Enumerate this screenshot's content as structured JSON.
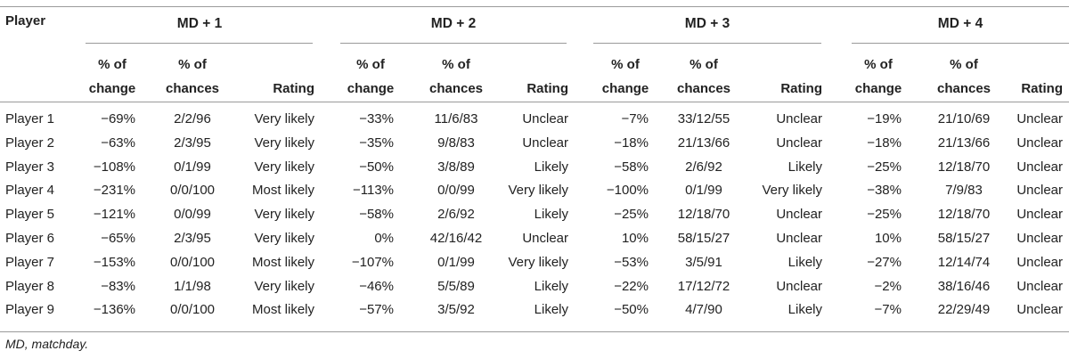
{
  "header": {
    "player": "Player",
    "groups": [
      "MD + 1",
      "MD + 2",
      "MD + 3",
      "MD + 4"
    ],
    "col_change_l1": "% of",
    "col_change_l2": "change",
    "col_chances_l1": "% of",
    "col_chances_l2": "chances",
    "col_rating": "Rating"
  },
  "rows": [
    {
      "player": "Player 1",
      "md": [
        [
          "−69%",
          "2/2/96",
          "Very likely"
        ],
        [
          "−33%",
          "11/6/83",
          "Unclear"
        ],
        [
          "−7%",
          "33/12/55",
          "Unclear"
        ],
        [
          "−19%",
          "21/10/69",
          "Unclear"
        ]
      ]
    },
    {
      "player": "Player 2",
      "md": [
        [
          "−63%",
          "2/3/95",
          "Very likely"
        ],
        [
          "−35%",
          "9/8/83",
          "Unclear"
        ],
        [
          "−18%",
          "21/13/66",
          "Unclear"
        ],
        [
          "−18%",
          "21/13/66",
          "Unclear"
        ]
      ]
    },
    {
      "player": "Player 3",
      "md": [
        [
          "−108%",
          "0/1/99",
          "Very likely"
        ],
        [
          "−50%",
          "3/8/89",
          "Likely"
        ],
        [
          "−58%",
          "2/6/92",
          "Likely"
        ],
        [
          "−25%",
          "12/18/70",
          "Unclear"
        ]
      ]
    },
    {
      "player": "Player 4",
      "md": [
        [
          "−231%",
          "0/0/100",
          "Most likely"
        ],
        [
          "−113%",
          "0/0/99",
          "Very likely"
        ],
        [
          "−100%",
          "0/1/99",
          "Very likely"
        ],
        [
          "−38%",
          "7/9/83",
          "Unclear"
        ]
      ]
    },
    {
      "player": "Player 5",
      "md": [
        [
          "−121%",
          "0/0/99",
          "Very likely"
        ],
        [
          "−58%",
          "2/6/92",
          "Likely"
        ],
        [
          "−25%",
          "12/18/70",
          "Unclear"
        ],
        [
          "−25%",
          "12/18/70",
          "Unclear"
        ]
      ]
    },
    {
      "player": "Player 6",
      "md": [
        [
          "−65%",
          "2/3/95",
          "Very likely"
        ],
        [
          "0%",
          "42/16/42",
          "Unclear"
        ],
        [
          "10%",
          "58/15/27",
          "Unclear"
        ],
        [
          "10%",
          "58/15/27",
          "Unclear"
        ]
      ]
    },
    {
      "player": "Player 7",
      "md": [
        [
          "−153%",
          "0/0/100",
          "Most likely"
        ],
        [
          "−107%",
          "0/1/99",
          "Very likely"
        ],
        [
          "−53%",
          "3/5/91",
          "Likely"
        ],
        [
          "−27%",
          "12/14/74",
          "Unclear"
        ]
      ]
    },
    {
      "player": "Player 8",
      "md": [
        [
          "−83%",
          "1/1/98",
          "Very likely"
        ],
        [
          "−46%",
          "5/5/89",
          "Likely"
        ],
        [
          "−22%",
          "17/12/72",
          "Unclear"
        ],
        [
          "−2%",
          "38/16/46",
          "Unclear"
        ]
      ]
    },
    {
      "player": "Player 9",
      "md": [
        [
          "−136%",
          "0/0/100",
          "Most likely"
        ],
        [
          "−57%",
          "3/5/92",
          "Likely"
        ],
        [
          "−50%",
          "4/7/90",
          "Likely"
        ],
        [
          "−7%",
          "22/29/49",
          "Unclear"
        ]
      ]
    }
  ],
  "footnote": "MD, matchday."
}
